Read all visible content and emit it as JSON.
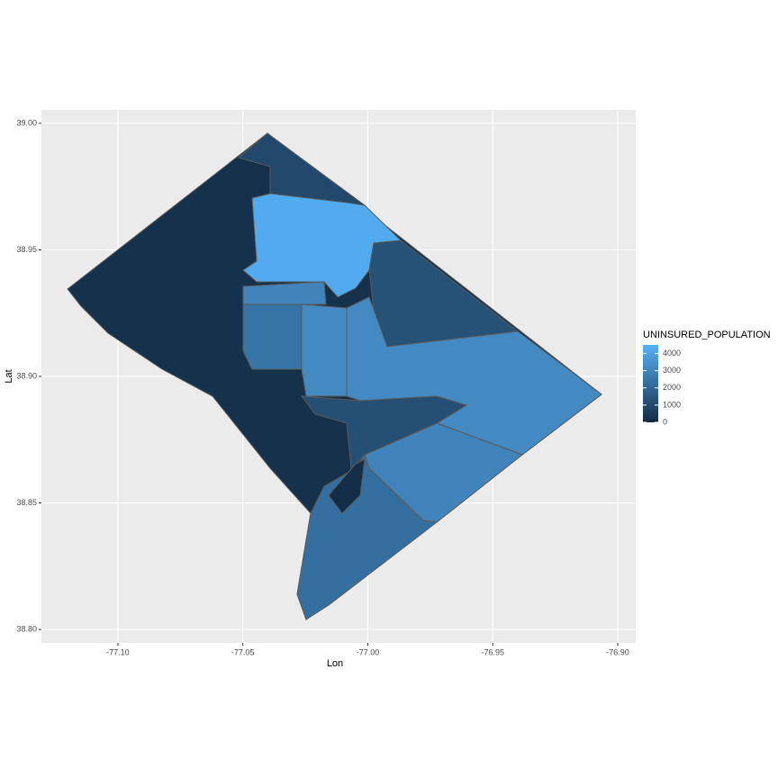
{
  "chart_data": {
    "type": "choropleth",
    "x_label": "Lon",
    "y_label": "Lat",
    "xlim": [
      -77.1306,
      -76.8928
    ],
    "ylim": [
      38.7947,
      39.0053
    ],
    "xticks": [
      {
        "value": -77.1,
        "label": "-77.10"
      },
      -77.05,
      {
        "value": -77,
        "label": "-77.00"
      },
      -76.95,
      {
        "value": -76.9,
        "label": "-76.90"
      }
    ],
    "yticks": [
      {
        "value": 38.8,
        "label": "38.80"
      },
      38.85,
      {
        "value": 38.9,
        "label": "38.90"
      },
      38.95,
      {
        "value": 39,
        "label": "39.00"
      }
    ],
    "grid": true,
    "legend_title": "UNINSURED_POPULATION",
    "legend_lim": [
      0,
      4500
    ],
    "legend_ticks": [
      0,
      1000,
      2000,
      3000,
      4000
    ],
    "low_color": "#132B43",
    "high_color": "#56B1F7",
    "values": [
      200,
      1000,
      4300,
      1300,
      3000,
      2500,
      3200,
      3200,
      3000,
      2300,
      1200,
      100
    ]
  }
}
